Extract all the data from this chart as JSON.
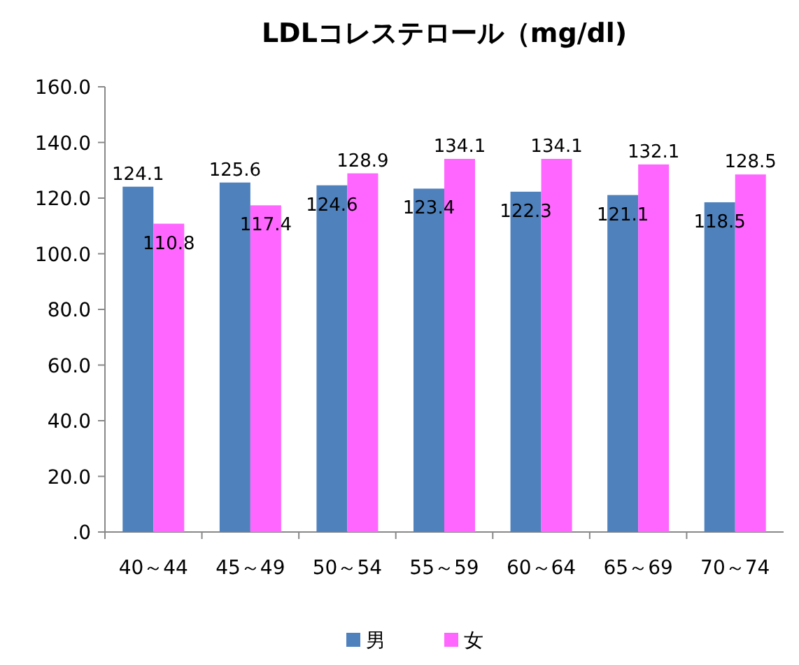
{
  "chart_data": {
    "type": "bar",
    "title": "LDLコレステロール（mg/dl)",
    "categories": [
      "40～44",
      "45～49",
      "50～54",
      "55～59",
      "60～64",
      "65～69",
      "70～74"
    ],
    "series": [
      {
        "name": "男",
        "color": "#4f81bd",
        "values": [
          124.1,
          125.6,
          124.6,
          123.4,
          122.3,
          121.1,
          118.5
        ]
      },
      {
        "name": "女",
        "color": "#ff66ff",
        "values": [
          110.8,
          117.4,
          128.9,
          134.1,
          134.1,
          132.1,
          128.5
        ]
      }
    ],
    "ylim": [
      0,
      160
    ],
    "yticks": [
      {
        "value": 0,
        "label": ".0"
      },
      {
        "value": 20,
        "label": "20.0"
      },
      {
        "value": 40,
        "label": "40.0"
      },
      {
        "value": 60,
        "label": "60.0"
      },
      {
        "value": 80,
        "label": "80.0"
      },
      {
        "value": 100,
        "label": "100.0"
      },
      {
        "value": 120,
        "label": "120.0"
      },
      {
        "value": 140,
        "label": "140.0"
      },
      {
        "value": 160,
        "label": "160.0"
      }
    ],
    "data_labels": true,
    "legend": "bottom",
    "grid": false
  }
}
